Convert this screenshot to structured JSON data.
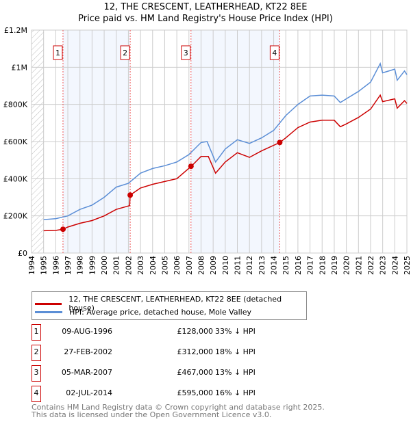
{
  "chart_data": {
    "type": "line",
    "title": "12, THE CRESCENT, LEATHERHEAD, KT22 8EE",
    "subtitle": "Price paid vs. HM Land Registry's House Price Index (HPI)",
    "xlim": [
      1994,
      2025
    ],
    "ylim": [
      0,
      1200000
    ],
    "x_ticks": [
      "1994",
      "1995",
      "1996",
      "1997",
      "1998",
      "1999",
      "2000",
      "2001",
      "2002",
      "2003",
      "2004",
      "2005",
      "2006",
      "2007",
      "2008",
      "2009",
      "2010",
      "2011",
      "2012",
      "2013",
      "2014",
      "2015",
      "2016",
      "2017",
      "2018",
      "2019",
      "2020",
      "2021",
      "2022",
      "2023",
      "2024",
      "2025"
    ],
    "y_ticks": [
      {
        "v": 0,
        "label": "£0"
      },
      {
        "v": 200000,
        "label": "£200K"
      },
      {
        "v": 400000,
        "label": "£400K"
      },
      {
        "v": 600000,
        "label": "£600K"
      },
      {
        "v": 800000,
        "label": "£800K"
      },
      {
        "v": 1000000,
        "label": "£1M"
      },
      {
        "v": 1200000,
        "label": "£1.2M"
      }
    ],
    "grid": true,
    "series": [
      {
        "name": "12, THE CRESCENT, LEATHERHEAD, KT22 8EE (detached house)",
        "color": "#cc0000",
        "x": [
          1995,
          1996,
          1996.6,
          1997,
          1998,
          1999,
          2000,
          2001,
          2002.1,
          2002.15,
          2003,
          2004,
          2005,
          2006,
          2007.2,
          2008,
          2008.6,
          2009.2,
          2010,
          2011,
          2012,
          2013,
          2014.5,
          2015,
          2016,
          2017,
          2018,
          2019,
          2019.5,
          2020,
          2021,
          2022,
          2022.8,
          2023,
          2024,
          2024.2,
          2024.8,
          2025
        ],
        "y": [
          120000,
          122000,
          128000,
          140000,
          160000,
          175000,
          200000,
          235000,
          255000,
          312000,
          350000,
          370000,
          385000,
          400000,
          467000,
          520000,
          520000,
          430000,
          490000,
          540000,
          515000,
          550000,
          595000,
          620000,
          675000,
          705000,
          715000,
          715000,
          680000,
          695000,
          730000,
          775000,
          850000,
          815000,
          830000,
          780000,
          820000,
          805000
        ]
      },
      {
        "name": "HPI: Average price, detached house, Mole Valley",
        "color": "#5b8ed6",
        "x": [
          1995,
          1996,
          1997,
          1998,
          1999,
          2000,
          2001,
          2002,
          2003,
          2004,
          2005,
          2006,
          2007,
          2008,
          2008.5,
          2009.2,
          2010,
          2011,
          2012,
          2013,
          2014,
          2014.5,
          2015,
          2016,
          2017,
          2018,
          2019,
          2019.5,
          2020,
          2021,
          2022,
          2022.8,
          2023,
          2024,
          2024.2,
          2024.8,
          2025
        ],
        "y": [
          180000,
          185000,
          200000,
          235000,
          258000,
          300000,
          355000,
          375000,
          430000,
          455000,
          470000,
          490000,
          530000,
          595000,
          600000,
          490000,
          560000,
          610000,
          590000,
          620000,
          660000,
          700000,
          740000,
          800000,
          845000,
          850000,
          845000,
          810000,
          830000,
          870000,
          920000,
          1020000,
          970000,
          990000,
          930000,
          980000,
          960000
        ]
      }
    ],
    "sales": [
      {
        "n": "1",
        "x": 1996.6,
        "date": "09-AUG-1996",
        "price": 128000,
        "price_label": "£128,000",
        "hpi": "33% ↓ HPI"
      },
      {
        "n": "2",
        "x": 2002.15,
        "date": "27-FEB-2002",
        "price": 312000,
        "price_label": "£312,000",
        "hpi": "18% ↓ HPI"
      },
      {
        "n": "3",
        "x": 2007.17,
        "date": "05-MAR-2007",
        "price": 467000,
        "price_label": "£467,000",
        "hpi": "13% ↓ HPI"
      },
      {
        "n": "4",
        "x": 2014.5,
        "date": "02-JUL-2014",
        "price": 595000,
        "price_label": "£595,000",
        "hpi": "16% ↓ HPI"
      }
    ]
  },
  "footer": {
    "line1": "Contains HM Land Registry data © Crown copyright and database right 2025.",
    "line2": "This data is licensed under the Open Government Licence v3.0."
  }
}
